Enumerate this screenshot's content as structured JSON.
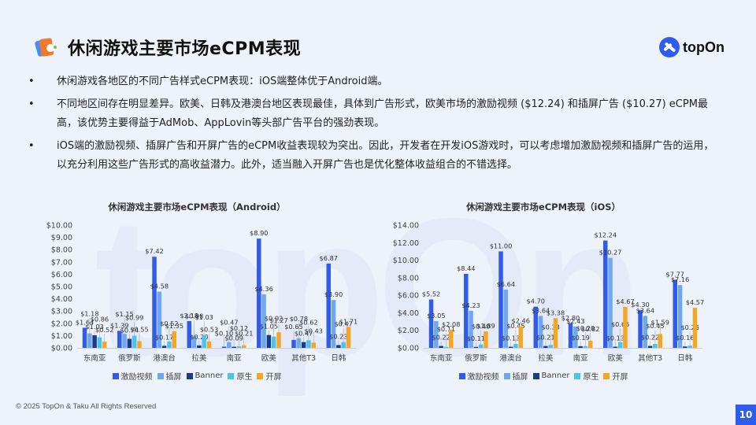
{
  "header": {
    "title": "休闲游戏主要市场eCPM表现",
    "logo_icon": "cards-mascot-icon",
    "brand": "topOn"
  },
  "bullets": [
    "休闲游戏各地区的不同广告样式eCPM表现：iOS端整体优于Android端。",
    "不同地区间存在明显差异。欧美、日韩及港澳台地区表现最佳，具体到广告形式，欧美市场的激励视频 ($12.24) 和插屏广告 ($10.27) eCPM最高，该优势主要得益于AdMob、AppLovin等头部广告平台的强劲表现。",
    "iOS端的激励视频、插屏广告和开屏广告的eCPM收益表现较为突出。因此，开发者在开发iOS游戏时，可以考虑增加激励视频和插屏广告的运用，以充分利用这些广告形式的高收益潜力。此外，适当融入开屏广告也是优化整体收益组合的不错选择。"
  ],
  "colors": {
    "激励视频": "#2f5ce8",
    "插屏": "#6fa8f0",
    "Banner": "#1c3a8c",
    "原生": "#4cc3ea",
    "开屏": "#f5a623",
    "accent": "#2f5cf0"
  },
  "chart_data": [
    {
      "type": "bar",
      "title": "休闲游戏主要市场eCPM表现（Android）",
      "xlabel": "",
      "ylabel": "",
      "ylim": [
        0,
        10
      ],
      "yticks": [
        "$0.00",
        "$1.00",
        "$2.00",
        "$3.00",
        "$4.00",
        "$5.00",
        "$6.00",
        "$7.00",
        "$8.00",
        "$9.00",
        "$10.00"
      ],
      "ystep": 1,
      "categories": [
        "东南亚",
        "俄罗斯",
        "港澳台",
        "拉美",
        "南亚",
        "欧美",
        "其他T3",
        "日韩"
      ],
      "legend_position": "bottom",
      "grid": false,
      "series": [
        {
          "name": "激励视频",
          "values": [
            1.64,
            1.39,
            7.42,
            2.18,
            0.1,
            8.9,
            0.65,
            6.87
          ]
        },
        {
          "name": "插屏",
          "values": [
            1.18,
            1.15,
            4.58,
            0.98,
            0.47,
            4.36,
            0.78,
            3.9
          ]
        },
        {
          "name": "Banner",
          "values": [
            1.03,
            0.74,
            0.17,
            0.2,
            0.09,
            1.05,
            0.47,
            0.23
          ]
        },
        {
          "name": "原生",
          "values": [
            0.86,
            0.99,
            0.52,
            1.03,
            0.12,
            0.92,
            0.62,
            0.47
          ]
        },
        {
          "name": "开屏",
          "values": [
            0.52,
            0.55,
            1.35,
            0.53,
            0.21,
            1.27,
            0.43,
            1.71
          ]
        }
      ]
    },
    {
      "type": "bar",
      "title": "休闲游戏主要市场eCPM表现（iOS）",
      "xlabel": "",
      "ylabel": "",
      "ylim": [
        0,
        14
      ],
      "yticks": [
        "$0.00",
        "$2.00",
        "$4.00",
        "$6.00",
        "$8.00",
        "$10.00",
        "$12.00",
        "$14.00"
      ],
      "ystep": 2,
      "categories": [
        "东南亚",
        "俄罗斯",
        "港澳台",
        "拉美",
        "南亚",
        "欧美",
        "其他T3",
        "日韩"
      ],
      "legend_position": "bottom",
      "grid": false,
      "series": [
        {
          "name": "激励视频",
          "values": [
            5.52,
            8.44,
            11.0,
            4.7,
            2.8,
            12.24,
            4.3,
            7.77
          ]
        },
        {
          "name": "插屏",
          "values": [
            3.05,
            4.23,
            6.64,
            3.64,
            2.43,
            10.27,
            3.64,
            7.16
          ]
        },
        {
          "name": "Banner",
          "values": [
            0.22,
            0.11,
            0.13,
            0.21,
            0.19,
            0.13,
            0.22,
            0.16
          ]
        },
        {
          "name": "原生",
          "values": [
            0.11,
            0.4,
            0.45,
            0.33,
            0.2,
            0.65,
            0.45,
            0.26
          ]
        },
        {
          "name": "开屏",
          "values": [
            2.08,
            1.89,
            2.46,
            3.38,
            0.82,
            4.67,
            1.59,
            4.57
          ]
        }
      ]
    }
  ],
  "footer": {
    "copyright": "© 2025 TopOn & Taku All Rights Reserved",
    "page_number": "10"
  }
}
